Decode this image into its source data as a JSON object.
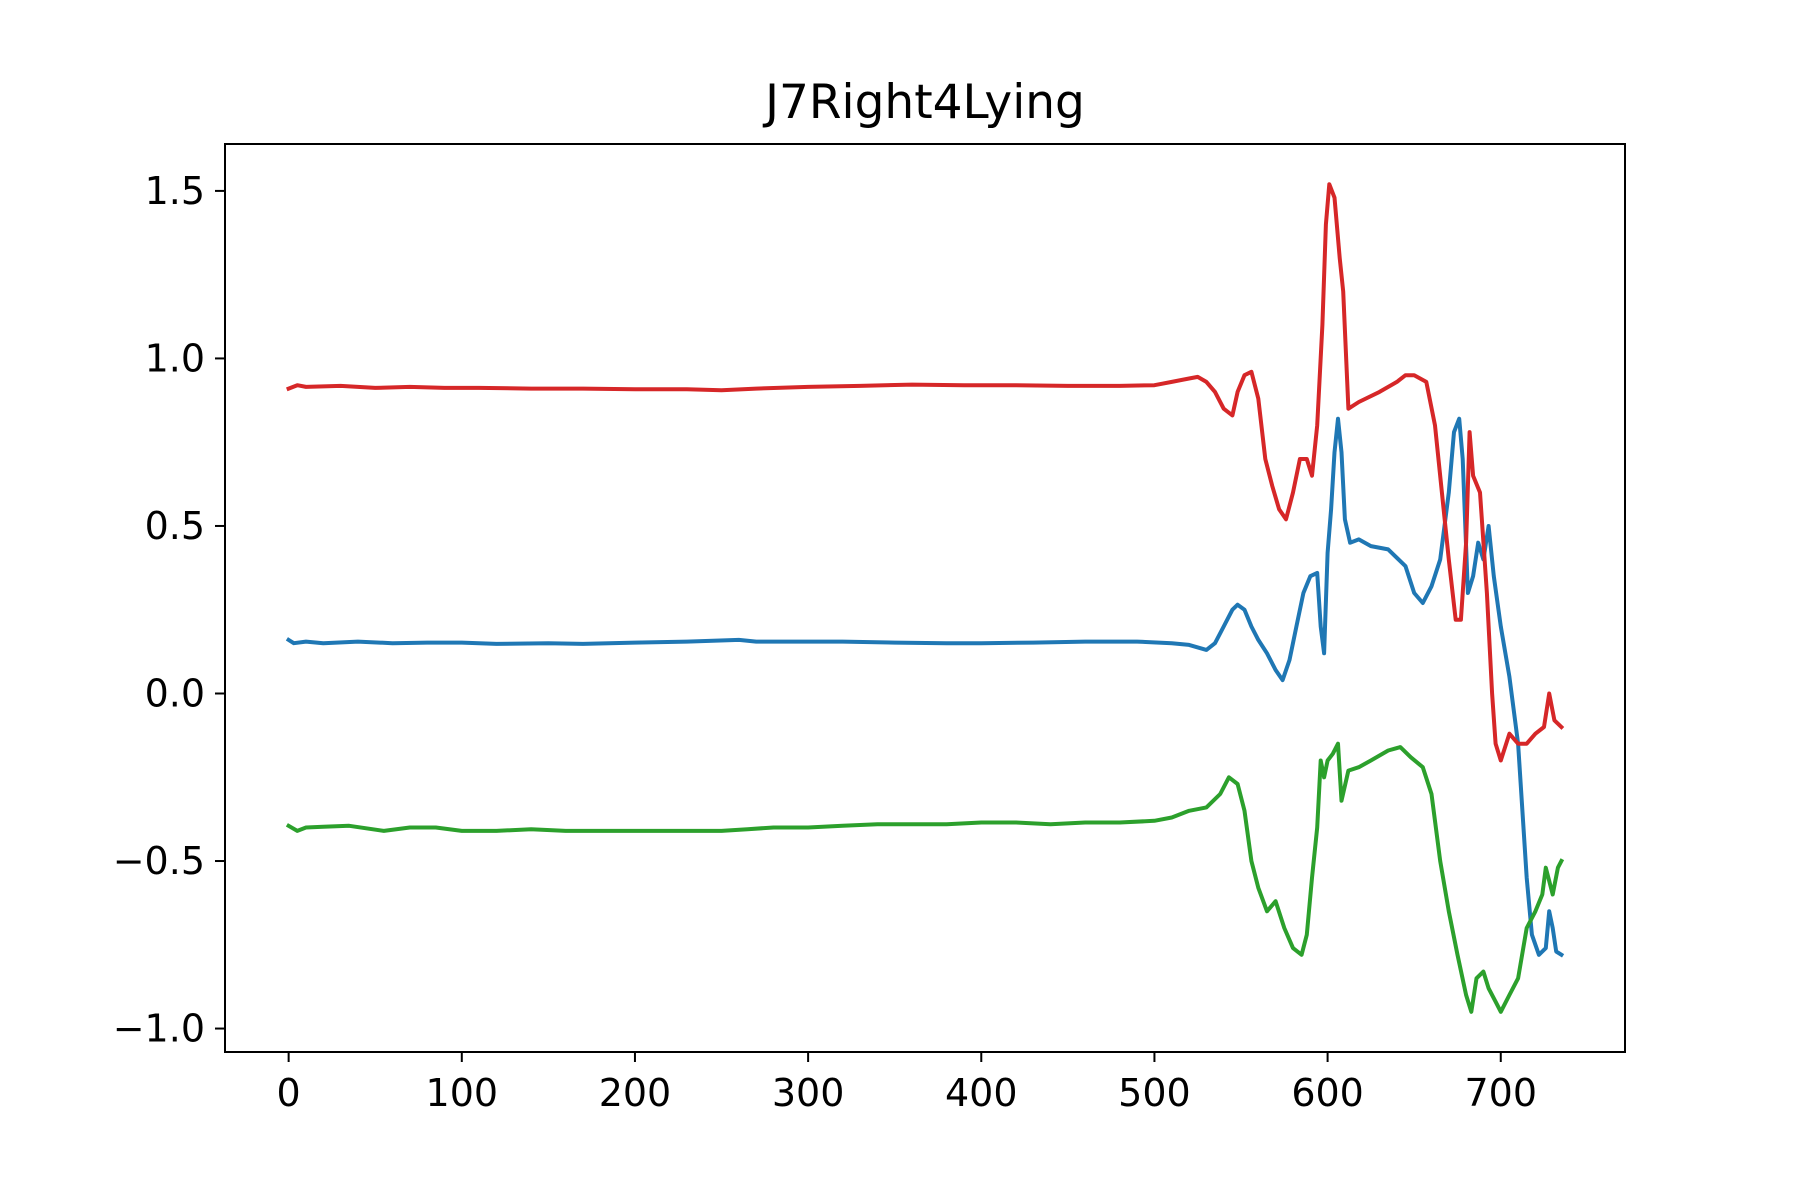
{
  "chart_data": {
    "type": "line",
    "title": "J7Right4Lying",
    "xlabel": "",
    "ylabel": "",
    "xlim": [
      -36.75,
      771.75
    ],
    "ylim": [
      -1.07,
      1.64
    ],
    "xticks": [
      0,
      100,
      200,
      300,
      400,
      500,
      600,
      700
    ],
    "xtick_labels": [
      "0",
      "100",
      "200",
      "300",
      "400",
      "500",
      "600",
      "700"
    ],
    "yticks": [
      -1.0,
      -0.5,
      0.0,
      0.5,
      1.0,
      1.5
    ],
    "ytick_labels": [
      "−1.0",
      "−0.5",
      "0.0",
      "0.5",
      "1.0",
      "1.5"
    ],
    "grid": false,
    "legend": null,
    "series": [
      {
        "name": "series-blue",
        "color": "#1f77b4",
        "points": [
          [
            0,
            0.16
          ],
          [
            3,
            0.15
          ],
          [
            10,
            0.155
          ],
          [
            20,
            0.15
          ],
          [
            40,
            0.155
          ],
          [
            60,
            0.15
          ],
          [
            80,
            0.152
          ],
          [
            100,
            0.152
          ],
          [
            120,
            0.148
          ],
          [
            150,
            0.15
          ],
          [
            170,
            0.148
          ],
          [
            200,
            0.152
          ],
          [
            230,
            0.155
          ],
          [
            260,
            0.16
          ],
          [
            270,
            0.155
          ],
          [
            290,
            0.155
          ],
          [
            320,
            0.155
          ],
          [
            350,
            0.152
          ],
          [
            380,
            0.15
          ],
          [
            400,
            0.15
          ],
          [
            430,
            0.152
          ],
          [
            460,
            0.155
          ],
          [
            490,
            0.155
          ],
          [
            510,
            0.15
          ],
          [
            520,
            0.145
          ],
          [
            530,
            0.13
          ],
          [
            535,
            0.15
          ],
          [
            540,
            0.2
          ],
          [
            545,
            0.25
          ],
          [
            548,
            0.265
          ],
          [
            552,
            0.25
          ],
          [
            556,
            0.2
          ],
          [
            560,
            0.16
          ],
          [
            565,
            0.12
          ],
          [
            570,
            0.07
          ],
          [
            574,
            0.04
          ],
          [
            578,
            0.1
          ],
          [
            582,
            0.2
          ],
          [
            586,
            0.3
          ],
          [
            590,
            0.35
          ],
          [
            594,
            0.36
          ],
          [
            596,
            0.2
          ],
          [
            598,
            0.12
          ],
          [
            600,
            0.42
          ],
          [
            602,
            0.55
          ],
          [
            604,
            0.72
          ],
          [
            606,
            0.82
          ],
          [
            608,
            0.72
          ],
          [
            610,
            0.52
          ],
          [
            613,
            0.45
          ],
          [
            618,
            0.46
          ],
          [
            625,
            0.44
          ],
          [
            635,
            0.43
          ],
          [
            645,
            0.38
          ],
          [
            650,
            0.3
          ],
          [
            655,
            0.27
          ],
          [
            660,
            0.32
          ],
          [
            665,
            0.4
          ],
          [
            670,
            0.6
          ],
          [
            673,
            0.78
          ],
          [
            676,
            0.82
          ],
          [
            678,
            0.7
          ],
          [
            681,
            0.3
          ],
          [
            684,
            0.35
          ],
          [
            687,
            0.45
          ],
          [
            690,
            0.4
          ],
          [
            693,
            0.5
          ],
          [
            696,
            0.35
          ],
          [
            700,
            0.2
          ],
          [
            705,
            0.05
          ],
          [
            710,
            -0.15
          ],
          [
            715,
            -0.55
          ],
          [
            718,
            -0.72
          ],
          [
            722,
            -0.78
          ],
          [
            726,
            -0.76
          ],
          [
            728,
            -0.65
          ],
          [
            730,
            -0.7
          ],
          [
            732,
            -0.77
          ],
          [
            735,
            -0.78
          ]
        ]
      },
      {
        "name": "series-red",
        "color": "#d62728",
        "points": [
          [
            0,
            0.91
          ],
          [
            5,
            0.92
          ],
          [
            10,
            0.915
          ],
          [
            30,
            0.918
          ],
          [
            50,
            0.912
          ],
          [
            70,
            0.915
          ],
          [
            90,
            0.912
          ],
          [
            110,
            0.912
          ],
          [
            140,
            0.91
          ],
          [
            170,
            0.91
          ],
          [
            200,
            0.908
          ],
          [
            230,
            0.908
          ],
          [
            250,
            0.905
          ],
          [
            270,
            0.91
          ],
          [
            300,
            0.915
          ],
          [
            330,
            0.918
          ],
          [
            360,
            0.922
          ],
          [
            390,
            0.92
          ],
          [
            420,
            0.92
          ],
          [
            450,
            0.918
          ],
          [
            480,
            0.918
          ],
          [
            500,
            0.92
          ],
          [
            510,
            0.93
          ],
          [
            520,
            0.94
          ],
          [
            525,
            0.945
          ],
          [
            530,
            0.93
          ],
          [
            535,
            0.9
          ],
          [
            540,
            0.85
          ],
          [
            545,
            0.83
          ],
          [
            548,
            0.9
          ],
          [
            552,
            0.95
          ],
          [
            556,
            0.96
          ],
          [
            560,
            0.88
          ],
          [
            564,
            0.7
          ],
          [
            568,
            0.62
          ],
          [
            572,
            0.55
          ],
          [
            576,
            0.52
          ],
          [
            580,
            0.6
          ],
          [
            584,
            0.7
          ],
          [
            588,
            0.7
          ],
          [
            591,
            0.65
          ],
          [
            594,
            0.8
          ],
          [
            597,
            1.1
          ],
          [
            599,
            1.4
          ],
          [
            601,
            1.52
          ],
          [
            604,
            1.48
          ],
          [
            607,
            1.3
          ],
          [
            609,
            1.2
          ],
          [
            612,
            0.85
          ],
          [
            618,
            0.87
          ],
          [
            630,
            0.9
          ],
          [
            640,
            0.93
          ],
          [
            645,
            0.95
          ],
          [
            650,
            0.95
          ],
          [
            657,
            0.93
          ],
          [
            662,
            0.8
          ],
          [
            666,
            0.6
          ],
          [
            670,
            0.4
          ],
          [
            674,
            0.22
          ],
          [
            677,
            0.22
          ],
          [
            680,
            0.45
          ],
          [
            682,
            0.78
          ],
          [
            684,
            0.65
          ],
          [
            688,
            0.6
          ],
          [
            692,
            0.3
          ],
          [
            695,
            0.0
          ],
          [
            697,
            -0.15
          ],
          [
            700,
            -0.2
          ],
          [
            705,
            -0.12
          ],
          [
            710,
            -0.15
          ],
          [
            715,
            -0.15
          ],
          [
            720,
            -0.12
          ],
          [
            725,
            -0.1
          ],
          [
            728,
            0.0
          ],
          [
            731,
            -0.08
          ],
          [
            735,
            -0.1
          ]
        ]
      },
      {
        "name": "series-green",
        "color": "#2ca02c",
        "points": [
          [
            0,
            -0.395
          ],
          [
            5,
            -0.41
          ],
          [
            10,
            -0.4
          ],
          [
            20,
            -0.398
          ],
          [
            35,
            -0.395
          ],
          [
            55,
            -0.41
          ],
          [
            70,
            -0.4
          ],
          [
            85,
            -0.4
          ],
          [
            100,
            -0.41
          ],
          [
            120,
            -0.41
          ],
          [
            140,
            -0.405
          ],
          [
            160,
            -0.41
          ],
          [
            190,
            -0.41
          ],
          [
            220,
            -0.41
          ],
          [
            250,
            -0.41
          ],
          [
            265,
            -0.405
          ],
          [
            280,
            -0.4
          ],
          [
            300,
            -0.4
          ],
          [
            320,
            -0.395
          ],
          [
            340,
            -0.39
          ],
          [
            360,
            -0.39
          ],
          [
            380,
            -0.39
          ],
          [
            400,
            -0.385
          ],
          [
            420,
            -0.385
          ],
          [
            440,
            -0.39
          ],
          [
            460,
            -0.385
          ],
          [
            480,
            -0.385
          ],
          [
            500,
            -0.38
          ],
          [
            510,
            -0.37
          ],
          [
            520,
            -0.35
          ],
          [
            530,
            -0.34
          ],
          [
            538,
            -0.3
          ],
          [
            543,
            -0.25
          ],
          [
            548,
            -0.27
          ],
          [
            552,
            -0.35
          ],
          [
            556,
            -0.5
          ],
          [
            560,
            -0.58
          ],
          [
            565,
            -0.65
          ],
          [
            570,
            -0.62
          ],
          [
            575,
            -0.7
          ],
          [
            580,
            -0.76
          ],
          [
            585,
            -0.78
          ],
          [
            588,
            -0.72
          ],
          [
            591,
            -0.55
          ],
          [
            594,
            -0.4
          ],
          [
            596,
            -0.2
          ],
          [
            598,
            -0.25
          ],
          [
            600,
            -0.2
          ],
          [
            603,
            -0.18
          ],
          [
            606,
            -0.15
          ],
          [
            608,
            -0.32
          ],
          [
            612,
            -0.23
          ],
          [
            618,
            -0.22
          ],
          [
            625,
            -0.2
          ],
          [
            635,
            -0.17
          ],
          [
            642,
            -0.16
          ],
          [
            648,
            -0.19
          ],
          [
            655,
            -0.22
          ],
          [
            660,
            -0.3
          ],
          [
            665,
            -0.5
          ],
          [
            670,
            -0.65
          ],
          [
            675,
            -0.78
          ],
          [
            680,
            -0.9
          ],
          [
            683,
            -0.95
          ],
          [
            686,
            -0.85
          ],
          [
            690,
            -0.83
          ],
          [
            693,
            -0.88
          ],
          [
            697,
            -0.92
          ],
          [
            700,
            -0.95
          ],
          [
            705,
            -0.9
          ],
          [
            710,
            -0.85
          ],
          [
            715,
            -0.7
          ],
          [
            720,
            -0.65
          ],
          [
            724,
            -0.6
          ],
          [
            726,
            -0.52
          ],
          [
            730,
            -0.6
          ],
          [
            733,
            -0.52
          ],
          [
            735,
            -0.5
          ]
        ]
      }
    ]
  }
}
